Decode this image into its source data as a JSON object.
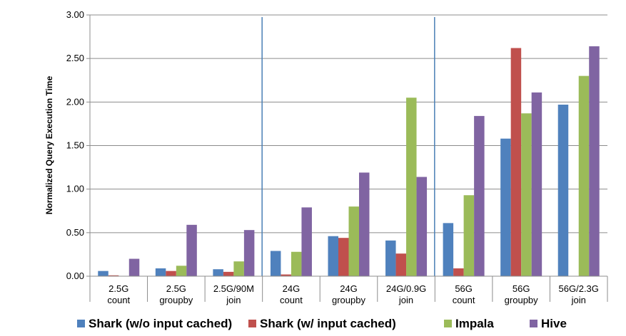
{
  "chart_data": {
    "type": "bar",
    "title": "",
    "xlabel": "",
    "ylabel": "Normalized Query Execution Time",
    "ylim": [
      0,
      3
    ],
    "yticks": [
      "0.00",
      "0.50",
      "1.00",
      "1.50",
      "2.00",
      "2.50",
      "3.00"
    ],
    "grid": true,
    "legend_position": "bottom",
    "categories": [
      [
        "2.5G",
        "count"
      ],
      [
        "2.5G",
        "groupby"
      ],
      [
        "2.5G/90M",
        "join"
      ],
      [
        "24G",
        "count"
      ],
      [
        "24G",
        "groupby"
      ],
      [
        "24G/0.9G",
        "join"
      ],
      [
        "56G",
        "count"
      ],
      [
        "56G",
        "groupby"
      ],
      [
        "56G/2.3G",
        "join"
      ]
    ],
    "group_separators_after": [
      2,
      5
    ],
    "series": [
      {
        "name": "Shark (w/o input cached)",
        "color": "#4F81BD",
        "values": [
          0.06,
          0.09,
          0.08,
          0.29,
          0.46,
          0.41,
          0.61,
          1.58,
          1.97
        ]
      },
      {
        "name": "Shark (w/ input cached)",
        "color": "#C0504D",
        "values": [
          0.01,
          0.06,
          0.05,
          0.02,
          0.44,
          0.26,
          0.09,
          2.62,
          0
        ]
      },
      {
        "name": "Impala",
        "color": "#9BBB59",
        "values": [
          0.0,
          0.12,
          0.17,
          0.28,
          0.8,
          2.05,
          0.93,
          1.87,
          2.3
        ]
      },
      {
        "name": "Hive",
        "color": "#8064A2",
        "values": [
          0.2,
          0.59,
          0.53,
          0.79,
          1.19,
          1.14,
          1.84,
          2.11,
          2.64
        ]
      }
    ]
  }
}
